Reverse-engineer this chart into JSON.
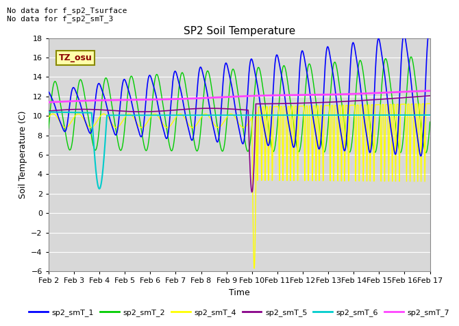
{
  "title": "SP2 Soil Temperature",
  "xlabel": "Time",
  "ylabel": "Soil Temperature (C)",
  "ylim": [
    -6,
    18
  ],
  "xlim": [
    0,
    15
  ],
  "x_tick_labels": [
    "Feb 2",
    "Feb 3",
    "Feb 4",
    "Feb 5",
    "Feb 6",
    "Feb 7",
    "Feb 8",
    "Feb 9",
    "Feb 10",
    "Feb 11",
    "Feb 12",
    "Feb 13",
    "Feb 14",
    "Feb 15",
    "Feb 16",
    "Feb 17"
  ],
  "annotation_text": "No data for f_sp2_Tsurface\nNo data for f_sp2_smT_3",
  "tz_label": "TZ_osu",
  "bg_color": "#d8d8d8",
  "colors": {
    "sp2_smT_1": "#0000ff",
    "sp2_smT_2": "#00cc00",
    "sp2_smT_4": "#ffff00",
    "sp2_smT_5": "#880088",
    "sp2_smT_6": "#00cccc",
    "sp2_smT_7": "#ff44ff"
  },
  "legend_entries": [
    "sp2_smT_1",
    "sp2_smT_2",
    "sp2_smT_4",
    "sp2_smT_5",
    "sp2_smT_6",
    "sp2_smT_7"
  ]
}
